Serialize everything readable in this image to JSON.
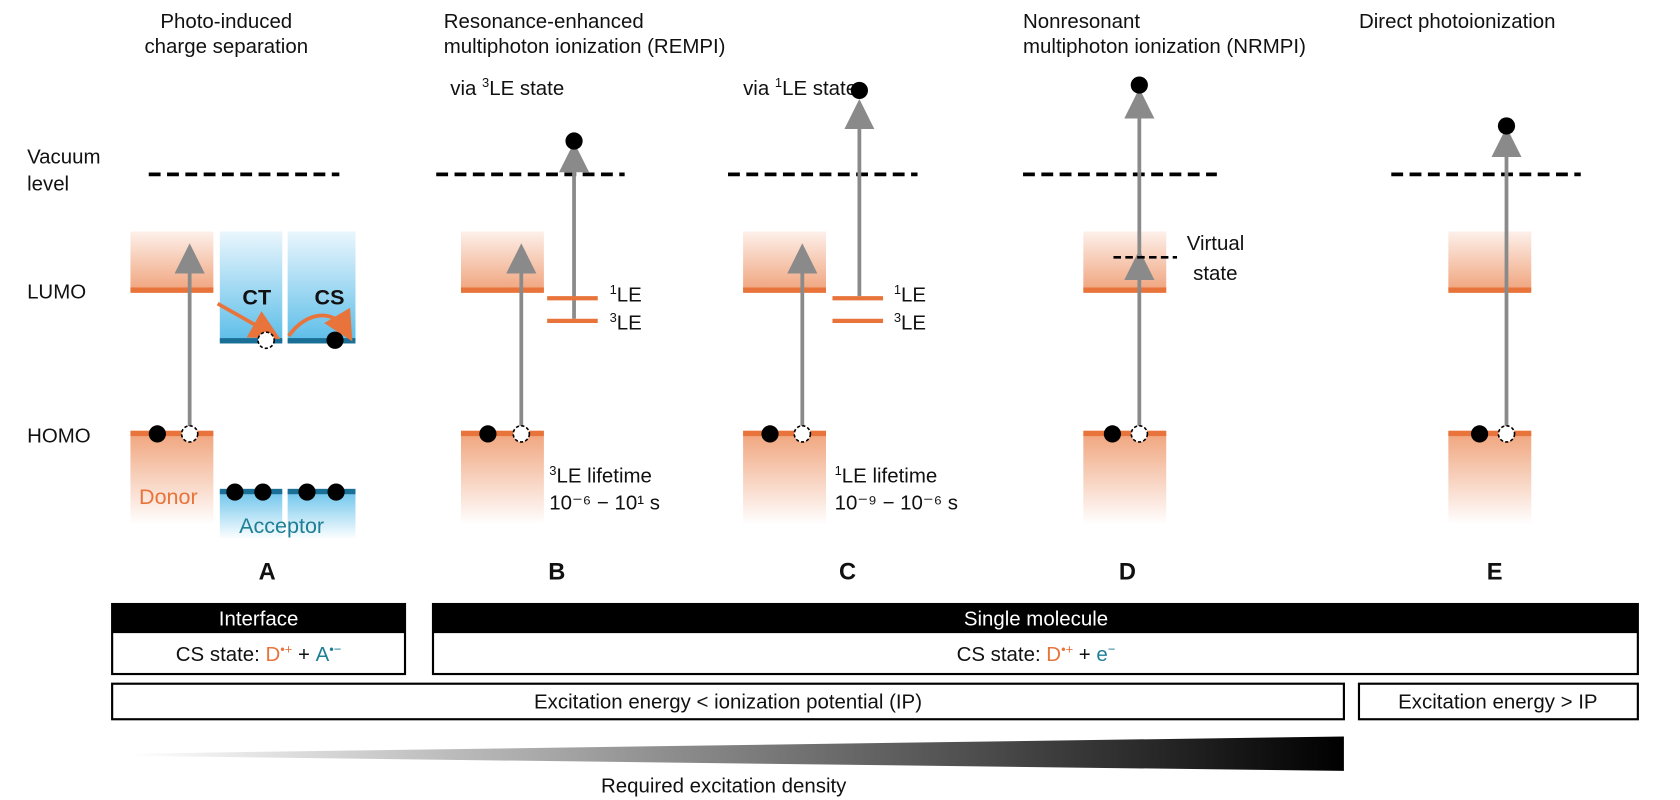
{
  "colors": {
    "orange": "#e8743b",
    "teal": "#1f7f95",
    "arrow": "#8a8a8a",
    "acceptor_line": "#1a6f96"
  },
  "panels": {
    "A": {
      "title1": "Photo-induced",
      "title2": "charge separation",
      "letter": "A",
      "ct": "CT",
      "cs": "CS",
      "donor": "Donor",
      "acceptor": "Acceptor"
    },
    "B": {
      "title1": "Resonance-enhanced",
      "title2": "multiphoton ionization (REMPI)",
      "via_pre": "via ",
      "via_sup": "3",
      "via_post": "LE state",
      "le1_sup": "1",
      "le3_sup": "3",
      "le": "LE",
      "life_sup": "3",
      "life": "LE lifetime",
      "range": "10⁻⁶ − 10¹ s",
      "letter": "B"
    },
    "C": {
      "via_pre": "via ",
      "via_sup": "1",
      "via_post": "LE state",
      "le1_sup": "1",
      "le3_sup": "3",
      "le": "LE",
      "life_sup": "1",
      "life": "LE lifetime",
      "range": "10⁻⁹ − 10⁻⁶ s",
      "letter": "C"
    },
    "D": {
      "title1": "Nonresonant",
      "title2": "multiphoton ionization (NRMPI)",
      "virtual1": "Virtual",
      "virtual2": "state",
      "letter": "D"
    },
    "E": {
      "title1": "Direct photoionization",
      "letter": "E"
    }
  },
  "axis": {
    "vacuum1": "Vacuum",
    "vacuum2": "level",
    "lumo": "LUMO",
    "homo": "HOMO"
  },
  "bars": {
    "interface": {
      "header": "Interface",
      "state_prefix": "CS state: ",
      "d": "D",
      "d_sup": "•+",
      "plus": " + ",
      "a": "A",
      "a_sup": "•−"
    },
    "single": {
      "header": "Single molecule",
      "state_prefix": "CS state: ",
      "d": "D",
      "d_sup": "•+",
      "plus": " + ",
      "e": "e",
      "e_sup": "−"
    },
    "below_ip": "Excitation energy < ionization potential (IP)",
    "above_ip": "Excitation energy > IP",
    "density": "Required excitation density"
  }
}
